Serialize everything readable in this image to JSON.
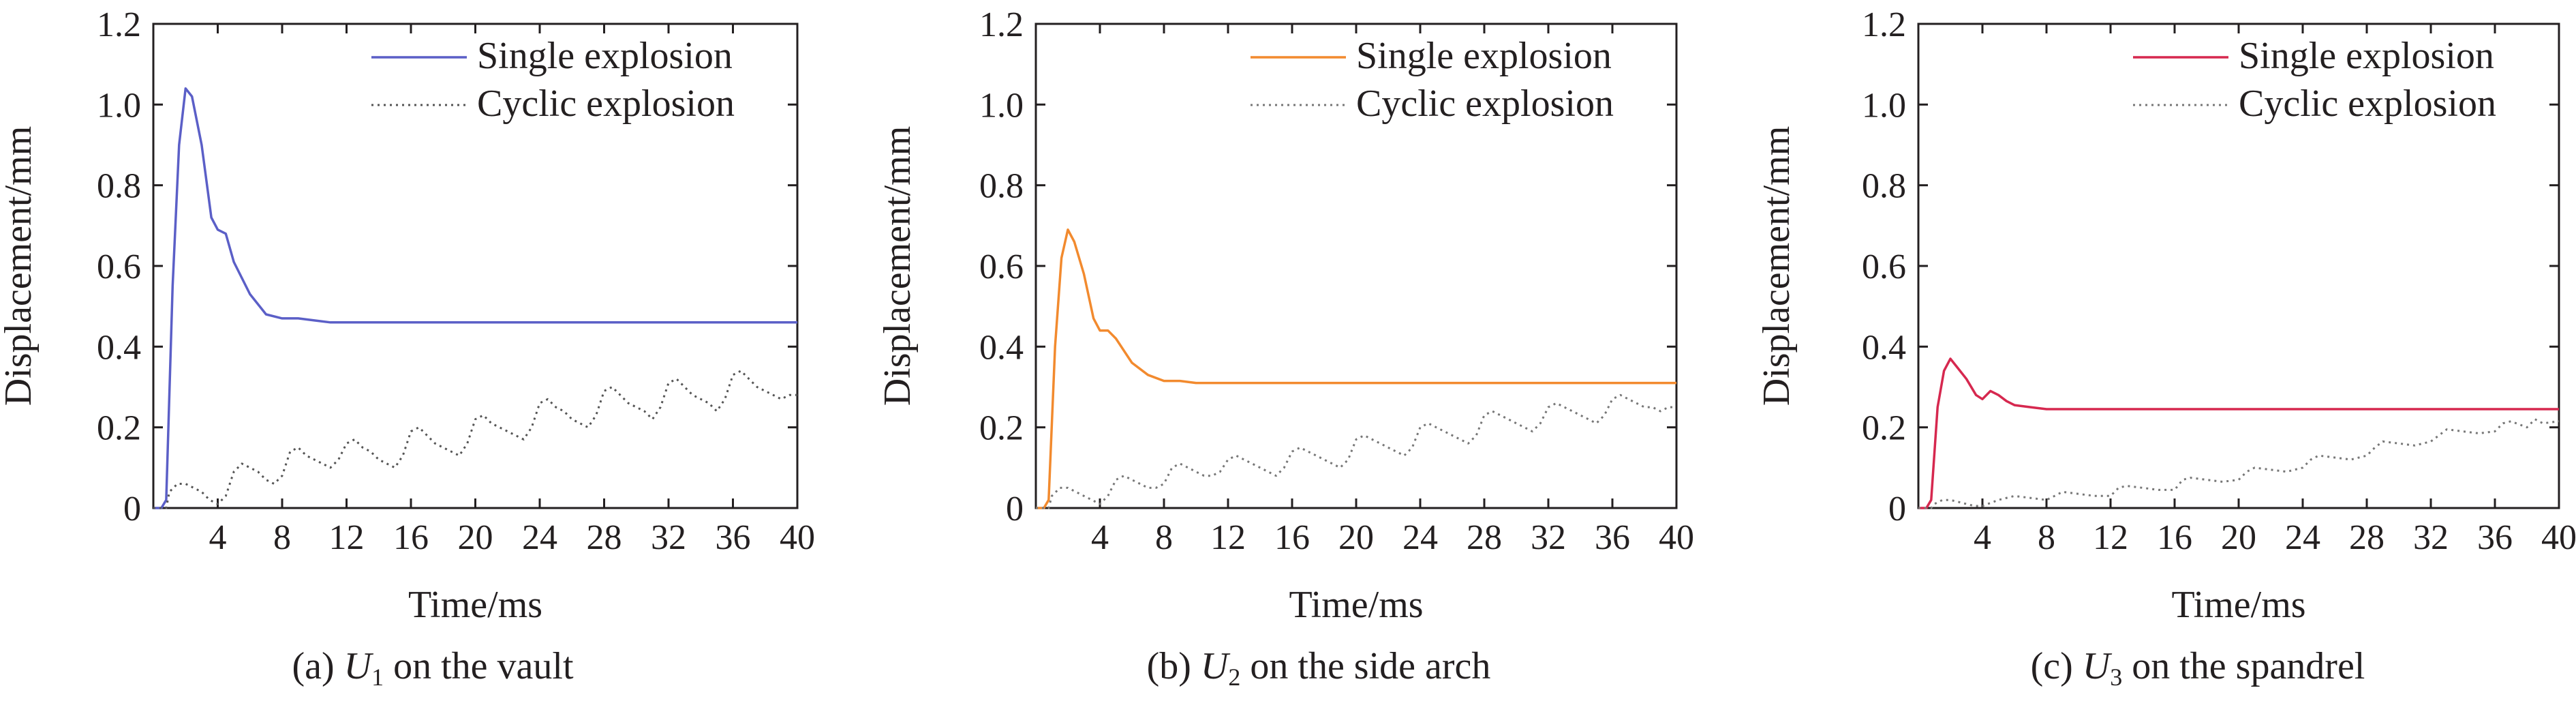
{
  "chart_data": [
    {
      "type": "line",
      "xlabel": "Time/ms",
      "ylabel": "Displacement/mm",
      "xlim": [
        0,
        40
      ],
      "ylim": [
        0,
        1.2
      ],
      "xticks": [
        "4",
        "8",
        "12",
        "16",
        "20",
        "24",
        "28",
        "32",
        "36",
        "40"
      ],
      "yticks": [
        "0",
        "0.2",
        "0.4",
        "0.6",
        "0.8",
        "1.0",
        "1.2"
      ],
      "legend_position": "top-right",
      "grid": false,
      "caption": {
        "prefix": "(a) ",
        "var": "U",
        "sub": "1",
        "suffix": " on the vault"
      },
      "series": [
        {
          "name": "Single explosion",
          "style": "solid",
          "color": "#5b5fc7",
          "x": [
            0,
            0.5,
            0.8,
            1.2,
            1.6,
            2.0,
            2.4,
            3.0,
            3.6,
            4.0,
            4.5,
            5.0,
            6.0,
            7.0,
            8.0,
            9.0,
            10.0,
            11.0,
            12.0,
            16.0,
            20.0,
            24.0,
            28.0,
            32.0,
            36.0,
            40.0
          ],
          "y": [
            0,
            0,
            0.02,
            0.55,
            0.9,
            1.04,
            1.02,
            0.9,
            0.72,
            0.69,
            0.68,
            0.61,
            0.53,
            0.48,
            0.47,
            0.47,
            0.465,
            0.46,
            0.46,
            0.46,
            0.46,
            0.46,
            0.46,
            0.46,
            0.46,
            0.46
          ]
        },
        {
          "name": "Cyclic explosion",
          "style": "dotted",
          "color": "#555555",
          "x": [
            0,
            0.8,
            1.0,
            1.5,
            2.0,
            2.5,
            3.0,
            3.5,
            4.0,
            4.5,
            5.0,
            5.5,
            6.0,
            6.5,
            7.0,
            7.5,
            8.0,
            8.5,
            9.0,
            9.5,
            10.0,
            10.5,
            11.0,
            11.5,
            12.0,
            12.5,
            13.0,
            13.5,
            14.0,
            14.5,
            15.0,
            15.5,
            16.0,
            16.5,
            17.0,
            17.5,
            18.0,
            18.5,
            19.0,
            19.5,
            20.0,
            20.5,
            21.0,
            21.5,
            22.0,
            22.5,
            23.0,
            23.5,
            24.0,
            24.5,
            25.0,
            25.5,
            26.0,
            26.5,
            27.0,
            27.5,
            28.0,
            28.5,
            29.0,
            29.5,
            30.0,
            30.5,
            31.0,
            31.5,
            32.0,
            32.5,
            33.0,
            33.5,
            34.0,
            34.5,
            35.0,
            35.5,
            36.0,
            36.5,
            37.0,
            37.5,
            38.0,
            38.5,
            39.0,
            39.5,
            40.0
          ],
          "y": [
            0,
            0,
            0.04,
            0.06,
            0.06,
            0.05,
            0.04,
            0.02,
            0.01,
            0.03,
            0.09,
            0.11,
            0.1,
            0.09,
            0.07,
            0.06,
            0.08,
            0.14,
            0.15,
            0.13,
            0.12,
            0.11,
            0.1,
            0.12,
            0.16,
            0.17,
            0.15,
            0.14,
            0.12,
            0.11,
            0.1,
            0.13,
            0.19,
            0.2,
            0.18,
            0.16,
            0.15,
            0.14,
            0.13,
            0.16,
            0.22,
            0.23,
            0.21,
            0.2,
            0.19,
            0.18,
            0.17,
            0.2,
            0.26,
            0.27,
            0.25,
            0.24,
            0.22,
            0.21,
            0.2,
            0.23,
            0.29,
            0.3,
            0.28,
            0.26,
            0.25,
            0.24,
            0.22,
            0.25,
            0.31,
            0.32,
            0.3,
            0.28,
            0.27,
            0.26,
            0.24,
            0.27,
            0.33,
            0.34,
            0.32,
            0.3,
            0.29,
            0.28,
            0.27,
            0.28,
            0.28
          ]
        }
      ]
    },
    {
      "type": "line",
      "xlabel": "Time/ms",
      "ylabel": "Displacement/mm",
      "xlim": [
        0,
        40
      ],
      "ylim": [
        0,
        1.2
      ],
      "xticks": [
        "4",
        "8",
        "12",
        "16",
        "20",
        "24",
        "28",
        "32",
        "36",
        "40"
      ],
      "yticks": [
        "0",
        "0.2",
        "0.4",
        "0.6",
        "0.8",
        "1.0",
        "1.2"
      ],
      "legend_position": "top-right",
      "grid": false,
      "caption": {
        "prefix": "(b) ",
        "var": "U",
        "sub": "2",
        "suffix": " on the side arch"
      },
      "series": [
        {
          "name": "Single explosion",
          "style": "solid",
          "color": "#f28a2e",
          "x": [
            0,
            0.5,
            0.8,
            1.2,
            1.6,
            2.0,
            2.4,
            3.0,
            3.6,
            4.0,
            4.5,
            5.0,
            6.0,
            7.0,
            8.0,
            9.0,
            10.0,
            11.0,
            12.0,
            16.0,
            20.0,
            24.0,
            28.0,
            32.0,
            36.0,
            40.0
          ],
          "y": [
            0,
            0,
            0.02,
            0.4,
            0.62,
            0.69,
            0.66,
            0.58,
            0.47,
            0.44,
            0.44,
            0.42,
            0.36,
            0.33,
            0.315,
            0.315,
            0.31,
            0.31,
            0.31,
            0.31,
            0.31,
            0.31,
            0.31,
            0.31,
            0.31,
            0.31
          ]
        },
        {
          "name": "Cyclic explosion",
          "style": "dotted",
          "color": "#777777",
          "x": [
            0,
            0.8,
            1.0,
            1.5,
            2.0,
            2.5,
            3.0,
            3.5,
            4.0,
            4.5,
            5.0,
            5.5,
            6.0,
            6.5,
            7.0,
            7.5,
            8.0,
            8.5,
            9.0,
            9.5,
            10.0,
            10.5,
            11.0,
            11.5,
            12.0,
            12.5,
            13.0,
            13.5,
            14.0,
            14.5,
            15.0,
            15.5,
            16.0,
            16.5,
            17.0,
            17.5,
            18.0,
            18.5,
            19.0,
            19.5,
            20.0,
            20.5,
            21.0,
            21.5,
            22.0,
            22.5,
            23.0,
            23.5,
            24.0,
            24.5,
            25.0,
            25.5,
            26.0,
            26.5,
            27.0,
            27.5,
            28.0,
            28.5,
            29.0,
            29.5,
            30.0,
            30.5,
            31.0,
            31.5,
            32.0,
            32.5,
            33.0,
            33.5,
            34.0,
            34.5,
            35.0,
            35.5,
            36.0,
            36.5,
            37.0,
            37.5,
            38.0,
            38.5,
            39.0,
            39.5,
            40.0
          ],
          "y": [
            0,
            0,
            0.03,
            0.05,
            0.05,
            0.04,
            0.03,
            0.02,
            0.01,
            0.03,
            0.07,
            0.08,
            0.07,
            0.06,
            0.05,
            0.05,
            0.06,
            0.1,
            0.11,
            0.1,
            0.09,
            0.08,
            0.08,
            0.09,
            0.12,
            0.13,
            0.12,
            0.11,
            0.1,
            0.09,
            0.08,
            0.1,
            0.14,
            0.15,
            0.14,
            0.13,
            0.12,
            0.11,
            0.1,
            0.12,
            0.17,
            0.18,
            0.17,
            0.16,
            0.15,
            0.14,
            0.13,
            0.15,
            0.2,
            0.21,
            0.2,
            0.19,
            0.18,
            0.17,
            0.16,
            0.18,
            0.23,
            0.24,
            0.23,
            0.22,
            0.21,
            0.2,
            0.19,
            0.21,
            0.25,
            0.26,
            0.25,
            0.24,
            0.23,
            0.22,
            0.21,
            0.23,
            0.27,
            0.28,
            0.27,
            0.26,
            0.25,
            0.25,
            0.24,
            0.25,
            0.25
          ]
        }
      ]
    },
    {
      "type": "line",
      "xlabel": "Time/ms",
      "ylabel": "Displacement/mm",
      "xlim": [
        0,
        40
      ],
      "ylim": [
        0,
        1.2
      ],
      "xticks": [
        "4",
        "8",
        "12",
        "16",
        "20",
        "24",
        "28",
        "32",
        "36",
        "40"
      ],
      "yticks": [
        "0",
        "0.2",
        "0.4",
        "0.6",
        "0.8",
        "1.0",
        "1.2"
      ],
      "legend_position": "top-right",
      "grid": false,
      "caption": {
        "prefix": "(c) ",
        "var": "U",
        "sub": "3",
        "suffix": " on the spandrel"
      },
      "series": [
        {
          "name": "Single explosion",
          "style": "solid",
          "color": "#d6284f",
          "x": [
            0,
            0.5,
            0.8,
            1.2,
            1.6,
            2.0,
            2.4,
            3.0,
            3.6,
            4.0,
            4.5,
            5.0,
            5.5,
            6.0,
            7.0,
            8.0,
            9.0,
            10.0,
            12.0,
            16.0,
            20.0,
            24.0,
            28.0,
            32.0,
            36.0,
            40.0
          ],
          "y": [
            0,
            0,
            0.02,
            0.25,
            0.34,
            0.37,
            0.35,
            0.32,
            0.28,
            0.27,
            0.29,
            0.28,
            0.265,
            0.255,
            0.25,
            0.245,
            0.245,
            0.245,
            0.245,
            0.245,
            0.245,
            0.245,
            0.245,
            0.245,
            0.245,
            0.245
          ]
        },
        {
          "name": "Cyclic explosion",
          "style": "dotted",
          "color": "#777777",
          "x": [
            0,
            0.8,
            1.0,
            1.5,
            2.0,
            2.5,
            3.0,
            3.5,
            4.0,
            5.0,
            6.0,
            7.0,
            8.0,
            8.5,
            9.0,
            10.0,
            11.0,
            12.0,
            12.5,
            13.0,
            14.0,
            15.0,
            16.0,
            16.5,
            17.0,
            18.0,
            19.0,
            20.0,
            20.5,
            21.0,
            22.0,
            23.0,
            24.0,
            24.5,
            25.0,
            26.0,
            27.0,
            28.0,
            28.5,
            29.0,
            30.0,
            31.0,
            32.0,
            32.5,
            33.0,
            34.0,
            35.0,
            36.0,
            36.5,
            37.0,
            38.0,
            38.5,
            39.0,
            40.0
          ],
          "y": [
            0,
            0,
            0.01,
            0.02,
            0.02,
            0.015,
            0.01,
            0.005,
            0.005,
            0.02,
            0.03,
            0.025,
            0.02,
            0.03,
            0.04,
            0.035,
            0.03,
            0.03,
            0.05,
            0.055,
            0.05,
            0.045,
            0.045,
            0.07,
            0.075,
            0.07,
            0.065,
            0.07,
            0.09,
            0.1,
            0.095,
            0.09,
            0.1,
            0.12,
            0.13,
            0.125,
            0.12,
            0.13,
            0.15,
            0.165,
            0.16,
            0.155,
            0.165,
            0.18,
            0.195,
            0.19,
            0.185,
            0.19,
            0.21,
            0.215,
            0.2,
            0.22,
            0.21,
            0.215
          ]
        }
      ]
    }
  ]
}
